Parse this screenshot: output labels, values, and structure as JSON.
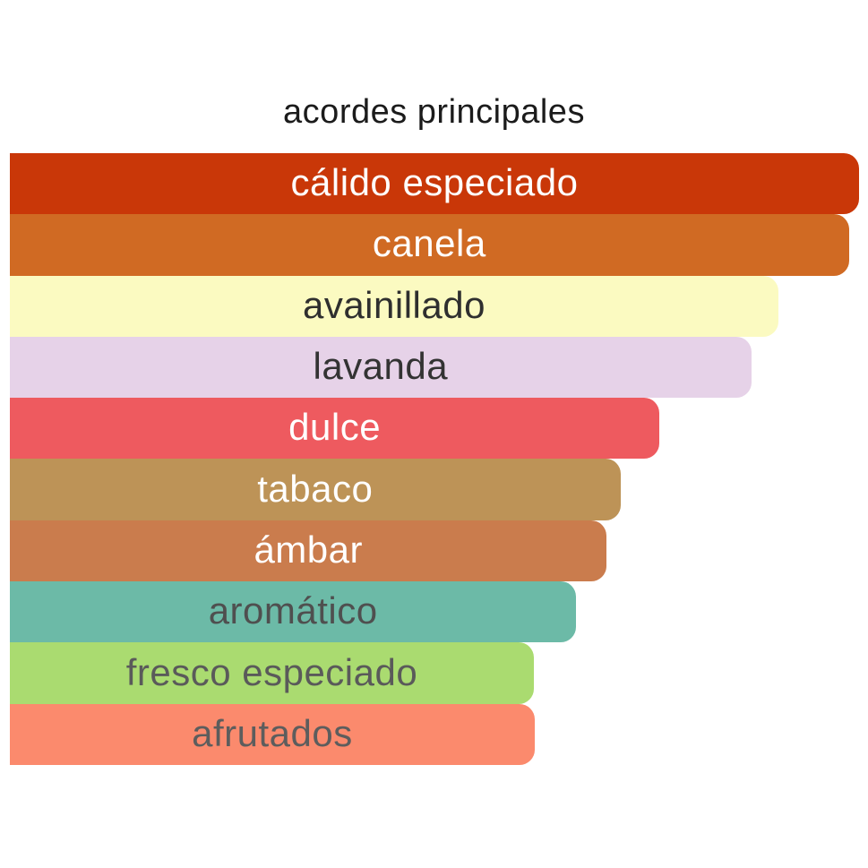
{
  "title": "acordes principales",
  "chart_data": {
    "type": "bar",
    "orientation": "horizontal",
    "title": "acordes principales",
    "categories": [
      "cálido especiado",
      "canela",
      "avainillado",
      "lavanda",
      "dulce",
      "tabaco",
      "ámbar",
      "aromático",
      "fresco especiado",
      "afrutados"
    ],
    "values": [
      100,
      98.8,
      90.5,
      87.3,
      76.5,
      71.9,
      70.3,
      66.7,
      61.7,
      61.8
    ],
    "value_unit": "percent of max bar width (no axes shown)",
    "xlabel": "",
    "ylabel": "",
    "grid": false,
    "legend": false,
    "bar_colors": [
      "#c93708",
      "#d06a23",
      "#fbfac1",
      "#e6d2e8",
      "#ee5a5f",
      "#bd9357",
      "#ca7c4d",
      "#6cbaa7",
      "#aadb70",
      "#fb8a6d"
    ],
    "label_colors": [
      "#ffffff",
      "#ffffff",
      "#2f2f2f",
      "#333333",
      "#ffffff",
      "#ffffff",
      "#ffffff",
      "#4f4f4f",
      "#5a5a5a",
      "#5d5d5d"
    ]
  },
  "bars": [
    {
      "label": "cálido especiado",
      "width_pct": 100,
      "color": "#c93708",
      "text_color": "#ffffff"
    },
    {
      "label": "canela",
      "width_pct": 98.8,
      "color": "#d06a23",
      "text_color": "#ffffff"
    },
    {
      "label": "avainillado",
      "width_pct": 90.5,
      "color": "#fbfac1",
      "text_color": "#2f2f2f"
    },
    {
      "label": "lavanda",
      "width_pct": 87.3,
      "color": "#e6d2e8",
      "text_color": "#333333"
    },
    {
      "label": "dulce",
      "width_pct": 76.5,
      "color": "#ee5a5f",
      "text_color": "#ffffff"
    },
    {
      "label": "tabaco",
      "width_pct": 71.9,
      "color": "#bd9357",
      "text_color": "#ffffff"
    },
    {
      "label": "ámbar",
      "width_pct": 70.3,
      "color": "#ca7c4d",
      "text_color": "#ffffff"
    },
    {
      "label": "aromático",
      "width_pct": 66.7,
      "color": "#6cbaa7",
      "text_color": "#4f4f4f"
    },
    {
      "label": "fresco especiado",
      "width_pct": 61.7,
      "color": "#aadb70",
      "text_color": "#5a5a5a"
    },
    {
      "label": "afrutados",
      "width_pct": 61.8,
      "color": "#fb8a6d",
      "text_color": "#5d5d5d"
    }
  ]
}
